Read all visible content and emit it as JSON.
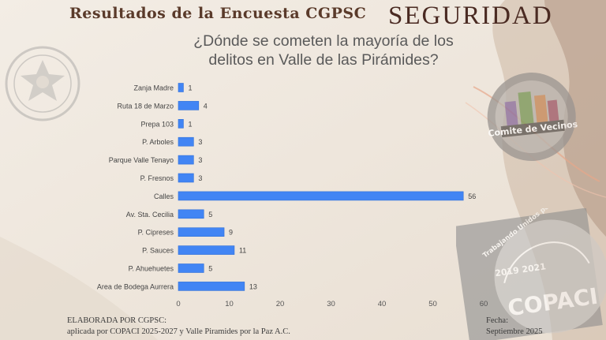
{
  "header": {
    "title": "Resultados de la Encuesta CGPSC",
    "section": "SEGURIDAD"
  },
  "question": {
    "line1": "¿Dónde se cometen la mayoría de los",
    "line2": "delitos en Valle de las Pirámides?"
  },
  "footer": {
    "left_line1": "ELABORADA POR CGPSC:",
    "left_line2": "aplicada por COPACI 2025-2027 y Valle Piramides por la Paz A.C.",
    "right_line1": "Fecha:",
    "right_line2": "Septiembre 2025"
  },
  "logos": {
    "seal": "police-seal-logo",
    "comite": "Comite de Vecinos",
    "copaci_top": "Trabajando Unidos por Valle de las Piramides",
    "copaci_years": "2019 2021",
    "copaci_name": "COPACI"
  },
  "colors": {
    "bar": "#4285f4",
    "bar_dark": "#2f6fd8",
    "axis_text": "#555555",
    "header_brown": "#5a3a2a"
  },
  "chart_data": {
    "type": "bar",
    "orientation": "horizontal",
    "categories": [
      "Zanja Madre",
      "Ruta 18 de Marzo",
      "Prepa 103",
      "P. Arboles",
      "Parque Valle Tenayo",
      "P. Fresnos",
      "Calles",
      "Av. Sta. Cecilia",
      "P. Cipreses",
      "P. Sauces",
      "P. Ahuehuetes",
      "Area de Bodega Aurrera"
    ],
    "values": [
      1,
      4,
      1,
      3,
      3,
      3,
      56,
      5,
      9,
      11,
      5,
      13
    ],
    "xlim": [
      0,
      60
    ],
    "xticks": [
      0,
      10,
      20,
      30,
      40,
      50,
      60
    ],
    "grid": false,
    "legend": "none"
  }
}
